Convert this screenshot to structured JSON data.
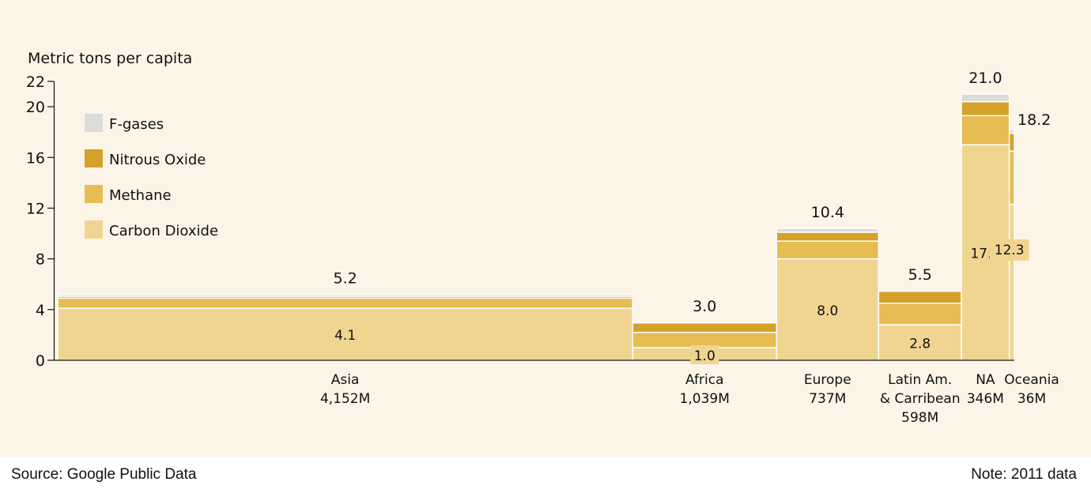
{
  "chart_data": {
    "type": "bar",
    "variant": "variable-width stacked (marimekko)",
    "ylabel": "Metric tons per capita",
    "ylim": [
      0,
      22
    ],
    "yticks": [
      0,
      4,
      8,
      12,
      16,
      20,
      22
    ],
    "legend_position": "top-left",
    "series": [
      {
        "name": "F-gases",
        "color": "#dcdcdc"
      },
      {
        "name": "Nitrous Oxide",
        "color": "#d4a12a"
      },
      {
        "name": "Methane",
        "color": "#e7bc52"
      },
      {
        "name": "Carbon Dioxide",
        "color": "#f0d591"
      }
    ],
    "categories": [
      {
        "name": "Asia",
        "population_label": "4,152M",
        "population": 4152,
        "co2": 4.1,
        "methane": 0.8,
        "n2o": 0.15,
        "fgas": 0.15,
        "total": 5.2,
        "co2_label": "4.1",
        "total_label": "5.2"
      },
      {
        "name": "Africa",
        "population_label": "1,039M",
        "population": 1039,
        "co2": 1.0,
        "methane": 1.2,
        "n2o": 0.75,
        "fgas": 0.05,
        "total": 3.0,
        "co2_label": "1.0",
        "total_label": "3.0"
      },
      {
        "name": "Europe",
        "population_label": "737M",
        "population": 737,
        "co2": 8.0,
        "methane": 1.4,
        "n2o": 0.7,
        "fgas": 0.3,
        "total": 10.4,
        "co2_label": "8.0",
        "total_label": "10.4"
      },
      {
        "name": "Latin Am. & Carribean",
        "population_label": "598M",
        "population": 598,
        "co2": 2.8,
        "methane": 1.7,
        "n2o": 0.95,
        "fgas": 0.05,
        "total": 5.5,
        "co2_label": "2.8",
        "total_label": "5.5"
      },
      {
        "name": "NA",
        "population_label": "346M",
        "population": 346,
        "co2": 17.0,
        "methane": 2.3,
        "n2o": 1.1,
        "fgas": 0.6,
        "total": 21.0,
        "co2_label": "17.0",
        "total_label": "21.0"
      },
      {
        "name": "Oceania",
        "population_label": "36M",
        "population": 36,
        "co2": 12.3,
        "methane": 4.2,
        "n2o": 1.4,
        "fgas": 0.3,
        "total": 18.2,
        "co2_label": "12.3",
        "total_label": "18.2"
      }
    ]
  },
  "footer": {
    "source": "Source: Google Public Data",
    "note": "Note: 2011 data"
  }
}
